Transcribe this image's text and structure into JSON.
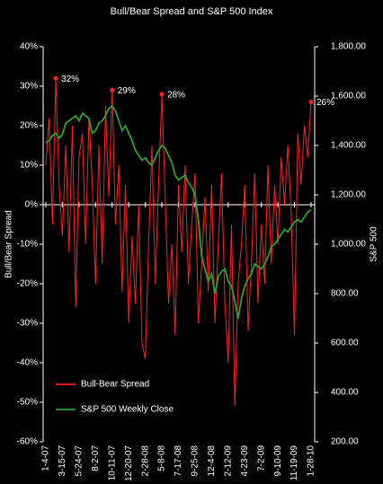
{
  "chart_data": {
    "type": "line",
    "title": "Bull/Bear Spread and S&P 500 Index",
    "y_label": "Bull/Bear Spread",
    "y2_label": "S&P 500",
    "categories": [
      "1-4-07",
      null,
      null,
      null,
      null,
      "3-15-07",
      null,
      null,
      null,
      null,
      "5-24-07",
      null,
      null,
      null,
      null,
      "8-2-07",
      null,
      null,
      null,
      null,
      "10-11-07",
      null,
      null,
      null,
      null,
      "12-20-07",
      null,
      null,
      null,
      null,
      "2-28-08",
      null,
      null,
      null,
      null,
      "5-8-08",
      null,
      null,
      null,
      null,
      "7-17-08",
      null,
      null,
      null,
      null,
      "9-25-08",
      null,
      null,
      null,
      null,
      "12-4-08",
      null,
      null,
      null,
      null,
      "2-12-09",
      null,
      null,
      null,
      null,
      "4-23-09",
      null,
      null,
      null,
      null,
      "7-2-09",
      null,
      null,
      null,
      null,
      "9-10-09",
      null,
      null,
      null,
      null,
      "11-19-09",
      null,
      null,
      null,
      null,
      "1-28-10"
    ],
    "series": [
      {
        "name": "Bull-Bear Spread",
        "color": "#ff2020",
        "values": [
          10,
          22,
          -5,
          32,
          5,
          -8,
          15,
          -12,
          20,
          -26,
          12,
          18,
          -10,
          22,
          5,
          -20,
          15,
          -15,
          25,
          2,
          29,
          -5,
          10,
          -22,
          5,
          -30,
          -8,
          -25,
          0,
          -35,
          -39,
          -10,
          15,
          -20,
          5,
          28,
          2,
          -25,
          -10,
          -33,
          5,
          -12,
          10,
          -20,
          -5,
          8,
          -30,
          -15,
          2,
          -22,
          5,
          -30,
          -10,
          8,
          -25,
          -40,
          -5,
          -51,
          -20,
          -10,
          5,
          -32,
          -15,
          8,
          -25,
          -5,
          -20,
          10,
          -15,
          5,
          -10,
          12,
          0,
          15,
          -2,
          -33,
          18,
          5,
          20,
          12,
          26
        ],
        "value_labels": [
          null,
          null,
          null,
          "32%",
          null,
          null,
          null,
          null,
          null,
          null,
          null,
          null,
          null,
          null,
          null,
          null,
          null,
          null,
          null,
          null,
          "29%",
          null,
          null,
          null,
          null,
          null,
          null,
          null,
          null,
          null,
          null,
          null,
          null,
          null,
          null,
          "28%",
          null,
          null,
          null,
          null,
          null,
          null,
          null,
          null,
          null,
          null,
          null,
          null,
          null,
          null,
          null,
          null,
          null,
          null,
          null,
          null,
          null,
          null,
          null,
          null,
          null,
          null,
          null,
          null,
          null,
          null,
          null,
          null,
          null,
          null,
          null,
          null,
          null,
          null,
          null,
          null,
          null,
          null,
          null,
          null,
          "26%"
        ]
      },
      {
        "name": "S&P 500 Weekly Close",
        "color": "#2ea02e",
        "axis": "y2",
        "values": [
          1410,
          1420,
          1440,
          1450,
          1430,
          1445,
          1490,
          1500,
          1510,
          1520,
          1500,
          1530,
          1520,
          1510,
          1450,
          1460,
          1490,
          1500,
          1520,
          1550,
          1560,
          1540,
          1500,
          1460,
          1480,
          1450,
          1420,
          1380,
          1360,
          1340,
          1350,
          1330,
          1320,
          1350,
          1380,
          1400,
          1390,
          1360,
          1330,
          1280,
          1260,
          1270,
          1280,
          1250,
          1230,
          1200,
          1100,
          950,
          900,
          850,
          880,
          800,
          870,
          890,
          900,
          850,
          830,
          770,
          700,
          780,
          830,
          860,
          880,
          920,
          910,
          900,
          920,
          950,
          990,
          1000,
          1020,
          1040,
          1060,
          1050,
          1070,
          1090,
          1100,
          1090,
          1110,
          1130,
          1140
        ]
      }
    ],
    "ylim": [
      -60,
      40
    ],
    "yticks": [
      {
        "value": -60,
        "label": "-60%"
      },
      {
        "value": -50,
        "label": "-50%"
      },
      {
        "value": -40,
        "label": "-40%"
      },
      {
        "value": -30,
        "label": "-30%"
      },
      {
        "value": -20,
        "label": "-20%"
      },
      {
        "value": -10,
        "label": "-10%"
      },
      {
        "value": 0,
        "label": "0%"
      },
      {
        "value": 10,
        "label": "10%"
      },
      {
        "value": 20,
        "label": "20%"
      },
      {
        "value": 30,
        "label": "30%"
      },
      {
        "value": 40,
        "label": "40%"
      }
    ],
    "y2lim": [
      200,
      1800
    ],
    "y2ticks": [
      {
        "value": 200,
        "label": "200.00"
      },
      {
        "value": 400,
        "label": "400.00"
      },
      {
        "value": 600,
        "label": "600.00"
      },
      {
        "value": 800,
        "label": "800.00"
      },
      {
        "value": 1000,
        "label": "1,000.00"
      },
      {
        "value": 1200,
        "label": "1,200.00"
      },
      {
        "value": 1400,
        "label": "1,400.00"
      },
      {
        "value": 1600,
        "label": "1,600.00"
      },
      {
        "value": 1800,
        "label": "1,800.00"
      }
    ],
    "legend": "bottom-left"
  }
}
